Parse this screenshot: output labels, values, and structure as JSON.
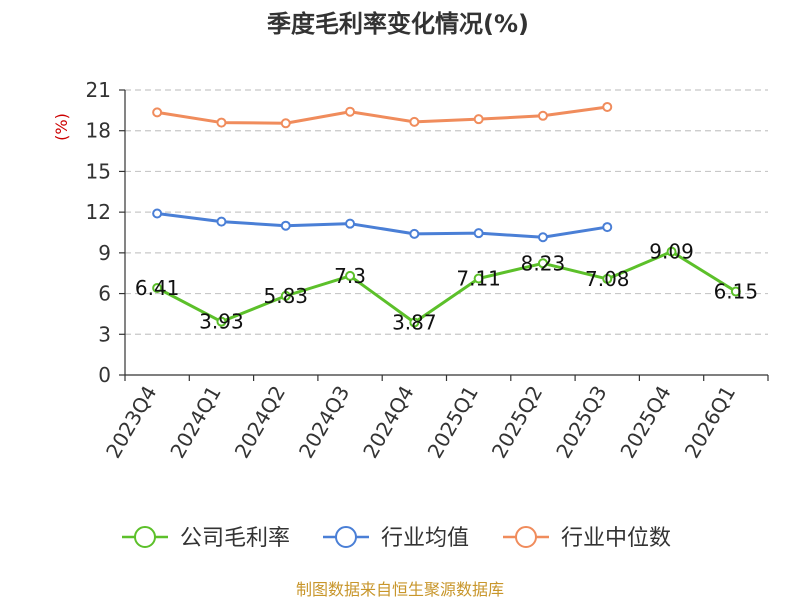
{
  "chart_data": {
    "type": "line",
    "title": "季度毛利率变化情况(%)",
    "ylabel": "(%)",
    "ylim": [
      0,
      21
    ],
    "yticks": [
      0,
      3,
      6,
      9,
      12,
      15,
      18,
      21
    ],
    "grid": true,
    "legend_position": "bottom",
    "categories": [
      "2023Q4",
      "2024Q1",
      "2024Q2",
      "2024Q3",
      "2024Q4",
      "2025Q1",
      "2025Q2",
      "2025Q3",
      "2025Q4",
      "2026Q1"
    ],
    "series": [
      {
        "name": "公司毛利率",
        "color": "#5cc02a",
        "values": [
          6.41,
          3.93,
          5.83,
          7.3,
          3.87,
          7.11,
          8.23,
          7.08,
          9.09,
          6.15
        ],
        "labels": [
          "6.41",
          "3.93",
          "5.83",
          "7.3",
          "3.87",
          "7.11",
          "8.23",
          "7.08",
          "9.09",
          "6.15"
        ]
      },
      {
        "name": "行业均值",
        "color": "#4a7fd6",
        "values": [
          11.9,
          11.3,
          11.0,
          11.15,
          10.4,
          10.45,
          10.15,
          10.9,
          null,
          null
        ]
      },
      {
        "name": "行业中位数",
        "color": "#f08c5c",
        "values": [
          19.35,
          18.6,
          18.55,
          19.4,
          18.65,
          18.85,
          19.1,
          19.75,
          null,
          null
        ]
      }
    ],
    "source": "制图数据来自恒生聚源数据库"
  }
}
